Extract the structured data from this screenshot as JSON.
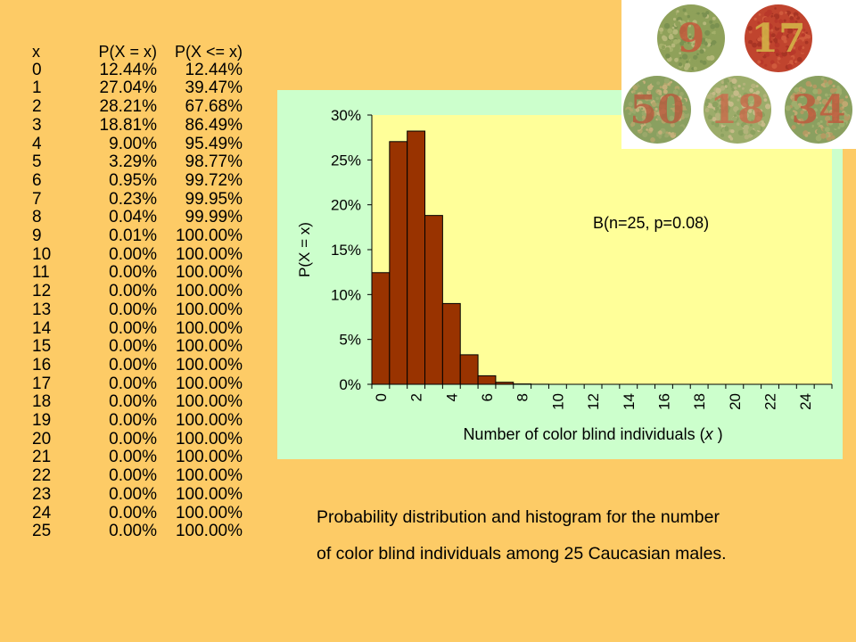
{
  "table": {
    "headers": [
      "x",
      "P(X = x)",
      "P(X <= x)"
    ],
    "rows": [
      [
        "0",
        "12.44%",
        "12.44%"
      ],
      [
        "1",
        "27.04%",
        "39.47%"
      ],
      [
        "2",
        "28.21%",
        "67.68%"
      ],
      [
        "3",
        "18.81%",
        "86.49%"
      ],
      [
        "4",
        "9.00%",
        "95.49%"
      ],
      [
        "5",
        "3.29%",
        "98.77%"
      ],
      [
        "6",
        "0.95%",
        "99.72%"
      ],
      [
        "7",
        "0.23%",
        "99.95%"
      ],
      [
        "8",
        "0.04%",
        "99.99%"
      ],
      [
        "9",
        "0.01%",
        "100.00%"
      ],
      [
        "10",
        "0.00%",
        "100.00%"
      ],
      [
        "11",
        "0.00%",
        "100.00%"
      ],
      [
        "12",
        "0.00%",
        "100.00%"
      ],
      [
        "13",
        "0.00%",
        "100.00%"
      ],
      [
        "14",
        "0.00%",
        "100.00%"
      ],
      [
        "15",
        "0.00%",
        "100.00%"
      ],
      [
        "16",
        "0.00%",
        "100.00%"
      ],
      [
        "17",
        "0.00%",
        "100.00%"
      ],
      [
        "18",
        "0.00%",
        "100.00%"
      ],
      [
        "19",
        "0.00%",
        "100.00%"
      ],
      [
        "20",
        "0.00%",
        "100.00%"
      ],
      [
        "21",
        "0.00%",
        "100.00%"
      ],
      [
        "22",
        "0.00%",
        "100.00%"
      ],
      [
        "23",
        "0.00%",
        "100.00%"
      ],
      [
        "24",
        "0.00%",
        "100.00%"
      ],
      [
        "25",
        "0.00%",
        "100.00%"
      ]
    ]
  },
  "chart_data": {
    "type": "bar",
    "x": [
      0,
      1,
      2,
      3,
      4,
      5,
      6,
      7,
      8,
      9,
      10,
      11,
      12,
      13,
      14,
      15,
      16,
      17,
      18,
      19,
      20,
      21,
      22,
      23,
      24,
      25
    ],
    "values": [
      12.44,
      27.04,
      28.21,
      18.81,
      9.0,
      3.29,
      0.95,
      0.23,
      0.04,
      0.01,
      0,
      0,
      0,
      0,
      0,
      0,
      0,
      0,
      0,
      0,
      0,
      0,
      0,
      0,
      0,
      0
    ],
    "x_tick_labels": [
      "0",
      "2",
      "4",
      "6",
      "8",
      "10",
      "12",
      "14",
      "16",
      "18",
      "20",
      "22",
      "24"
    ],
    "y_tick_labels": [
      "0%",
      "5%",
      "10%",
      "15%",
      "20%",
      "25%",
      "30%"
    ],
    "y_ticks": [
      0,
      5,
      10,
      15,
      20,
      25,
      30
    ],
    "ylim": [
      0,
      30
    ],
    "xlabel": "Number of color blind individuals (",
    "xlabel_var": "x",
    "xlabel_end": " )",
    "ylabel": "P(X = x)",
    "annotation": "B(n=25, p=0.08)",
    "grid": false,
    "colors": {
      "bar_fill": "#993300",
      "bar_stroke": "#000000",
      "plot_bg": "#FFFF99",
      "panel_bg": "#CCFFCC"
    }
  },
  "caption": {
    "line1": "Probability distribution and histogram for the number",
    "line2": "of color blind individuals among 25 Caucasian males."
  },
  "plates": {
    "numbers": [
      "9",
      "17",
      "50",
      "18",
      "34"
    ]
  }
}
